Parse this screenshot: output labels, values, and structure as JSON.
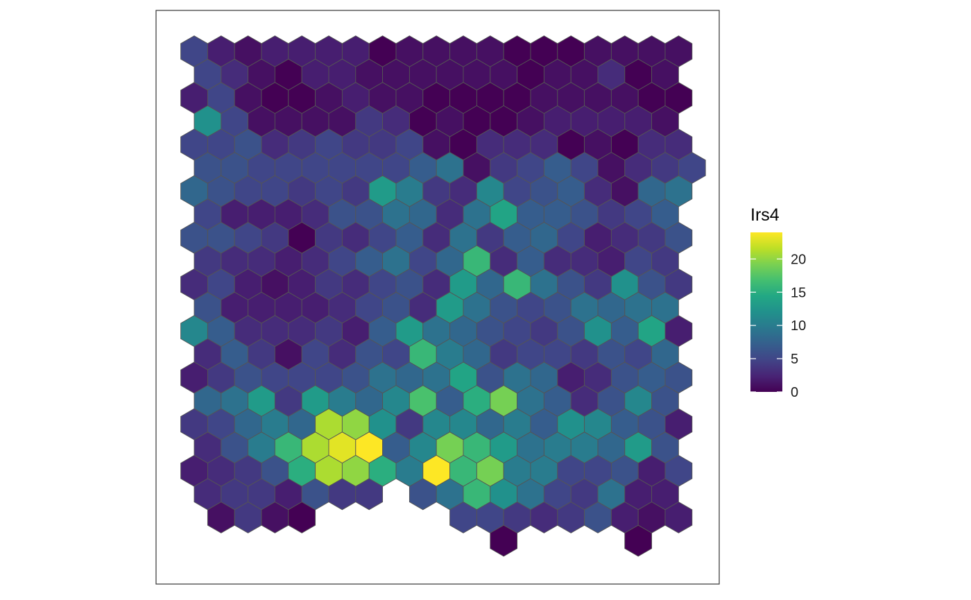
{
  "chart_data": {
    "type": "heatmap",
    "subtype": "hexagonal spatial grid",
    "legend": {
      "title": "Irs4",
      "placement": "right",
      "ticks": [
        0,
        5,
        10,
        15,
        20
      ],
      "tick_labels": [
        "0",
        "5",
        "10",
        "15",
        "20"
      ],
      "limits": [
        0,
        24
      ],
      "colormap": "viridis"
    },
    "grid": false,
    "columns": 19,
    "row_offset": "odd rows shifted right by half a cell",
    "rows": [
      [
        5,
        2,
        1,
        2,
        2,
        2,
        2,
        0,
        1,
        1,
        1,
        1,
        0,
        0,
        0,
        1,
        1,
        1,
        1
      ],
      [
        5,
        3,
        1,
        0,
        2,
        2,
        1,
        1,
        1,
        1,
        1,
        1,
        0,
        1,
        1,
        3,
        0,
        1,
        null
      ],
      [
        2,
        5,
        1,
        0,
        0,
        1,
        2,
        1,
        1,
        0,
        0,
        0,
        0,
        1,
        1,
        1,
        1,
        0,
        0
      ],
      [
        12,
        5,
        1,
        1,
        1,
        1,
        4,
        3,
        0,
        1,
        0,
        0,
        1,
        2,
        2,
        2,
        2,
        1,
        null
      ],
      [
        5,
        5,
        6,
        3,
        4,
        5,
        4,
        4,
        5,
        1,
        0,
        3,
        3,
        3,
        0,
        1,
        0,
        3,
        3
      ],
      [
        6,
        6,
        5,
        5,
        5,
        5,
        5,
        5,
        7,
        9,
        1,
        4,
        5,
        7,
        5,
        1,
        3,
        4,
        5
      ],
      [
        8,
        6,
        5,
        5,
        4,
        5,
        4,
        13,
        10,
        4,
        3,
        11,
        5,
        6,
        7,
        3,
        1,
        8,
        9
      ],
      [
        5,
        2,
        2,
        2,
        3,
        6,
        6,
        9,
        8,
        3,
        9,
        14,
        7,
        7,
        6,
        4,
        5,
        7,
        null
      ],
      [
        6,
        6,
        5,
        4,
        0,
        4,
        3,
        5,
        7,
        3,
        9,
        4,
        7,
        8,
        5,
        2,
        3,
        4,
        6
      ],
      [
        4,
        3,
        3,
        2,
        3,
        5,
        7,
        9,
        5,
        8,
        16,
        3,
        7,
        3,
        3,
        2,
        5,
        4,
        null
      ],
      [
        3,
        5,
        2,
        1,
        2,
        4,
        3,
        5,
        6,
        3,
        13,
        8,
        16,
        9,
        6,
        4,
        12,
        6,
        4
      ],
      [
        6,
        2,
        2,
        2,
        2,
        3,
        5,
        6,
        3,
        13,
        9,
        6,
        5,
        6,
        9,
        8,
        9,
        9,
        null
      ],
      [
        11,
        7,
        3,
        3,
        3,
        4,
        2,
        7,
        13,
        9,
        8,
        6,
        5,
        4,
        6,
        12,
        7,
        14,
        2
      ],
      [
        3,
        7,
        4,
        1,
        5,
        3,
        6,
        5,
        16,
        10,
        8,
        4,
        5,
        5,
        4,
        6,
        5,
        8,
        null
      ],
      [
        2,
        4,
        6,
        5,
        5,
        5,
        6,
        9,
        8,
        9,
        14,
        6,
        9,
        8,
        2,
        3,
        6,
        7,
        6
      ],
      [
        8,
        9,
        13,
        4,
        13,
        10,
        8,
        11,
        17,
        7,
        15,
        19,
        9,
        7,
        3,
        6,
        11,
        6,
        null
      ],
      [
        4,
        5,
        8,
        10,
        8,
        21,
        20,
        12,
        4,
        11,
        11,
        8,
        10,
        7,
        12,
        11,
        7,
        6,
        2
      ],
      [
        3,
        6,
        10,
        16,
        21,
        23,
        24,
        7,
        11,
        19,
        16,
        13,
        9,
        10,
        10,
        8,
        13,
        6,
        null
      ],
      [
        2,
        3,
        4,
        6,
        15,
        21,
        20,
        15,
        10,
        24,
        16,
        19,
        10,
        10,
        5,
        5,
        6,
        2,
        5
      ],
      [
        3,
        4,
        4,
        2,
        6,
        4,
        4,
        null,
        6,
        9,
        16,
        12,
        9,
        5,
        4,
        9,
        2,
        2,
        null
      ],
      [
        null,
        1,
        4,
        1,
        0,
        null,
        null,
        null,
        null,
        null,
        5,
        5,
        4,
        3,
        4,
        6,
        2,
        1,
        2
      ],
      [
        null,
        null,
        null,
        null,
        null,
        null,
        null,
        null,
        null,
        null,
        null,
        0,
        null,
        null,
        null,
        null,
        0,
        null,
        null
      ]
    ]
  }
}
